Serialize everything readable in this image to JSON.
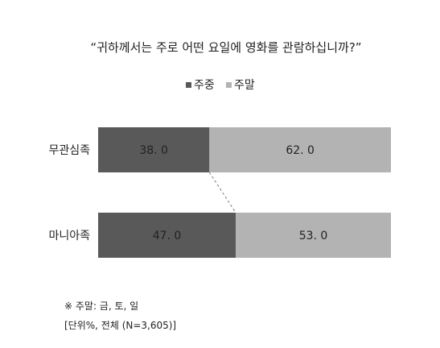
{
  "chart_data": {
    "type": "bar",
    "orientation": "horizontal",
    "stacked": true,
    "title": "“귀하께서는 주로 어떤 요일에 영화를 관람하십니까?”",
    "categories": [
      "무관심족",
      "마니아족"
    ],
    "series": [
      {
        "name": "주중",
        "values": [
          38.0,
          47.0
        ],
        "color": "#595959"
      },
      {
        "name": "주말",
        "values": [
          62.0,
          53.0
        ],
        "color": "#b3b3b3"
      }
    ],
    "value_format": "one-decimal, spaced",
    "xlim": [
      0,
      100
    ],
    "legend_position": "top-center",
    "grid": false,
    "connector": "dashed line between series boundaries",
    "notes": [
      "※ 주말: 금, 토, 일",
      "[단위%, 전체 (N=3,605)]"
    ]
  }
}
